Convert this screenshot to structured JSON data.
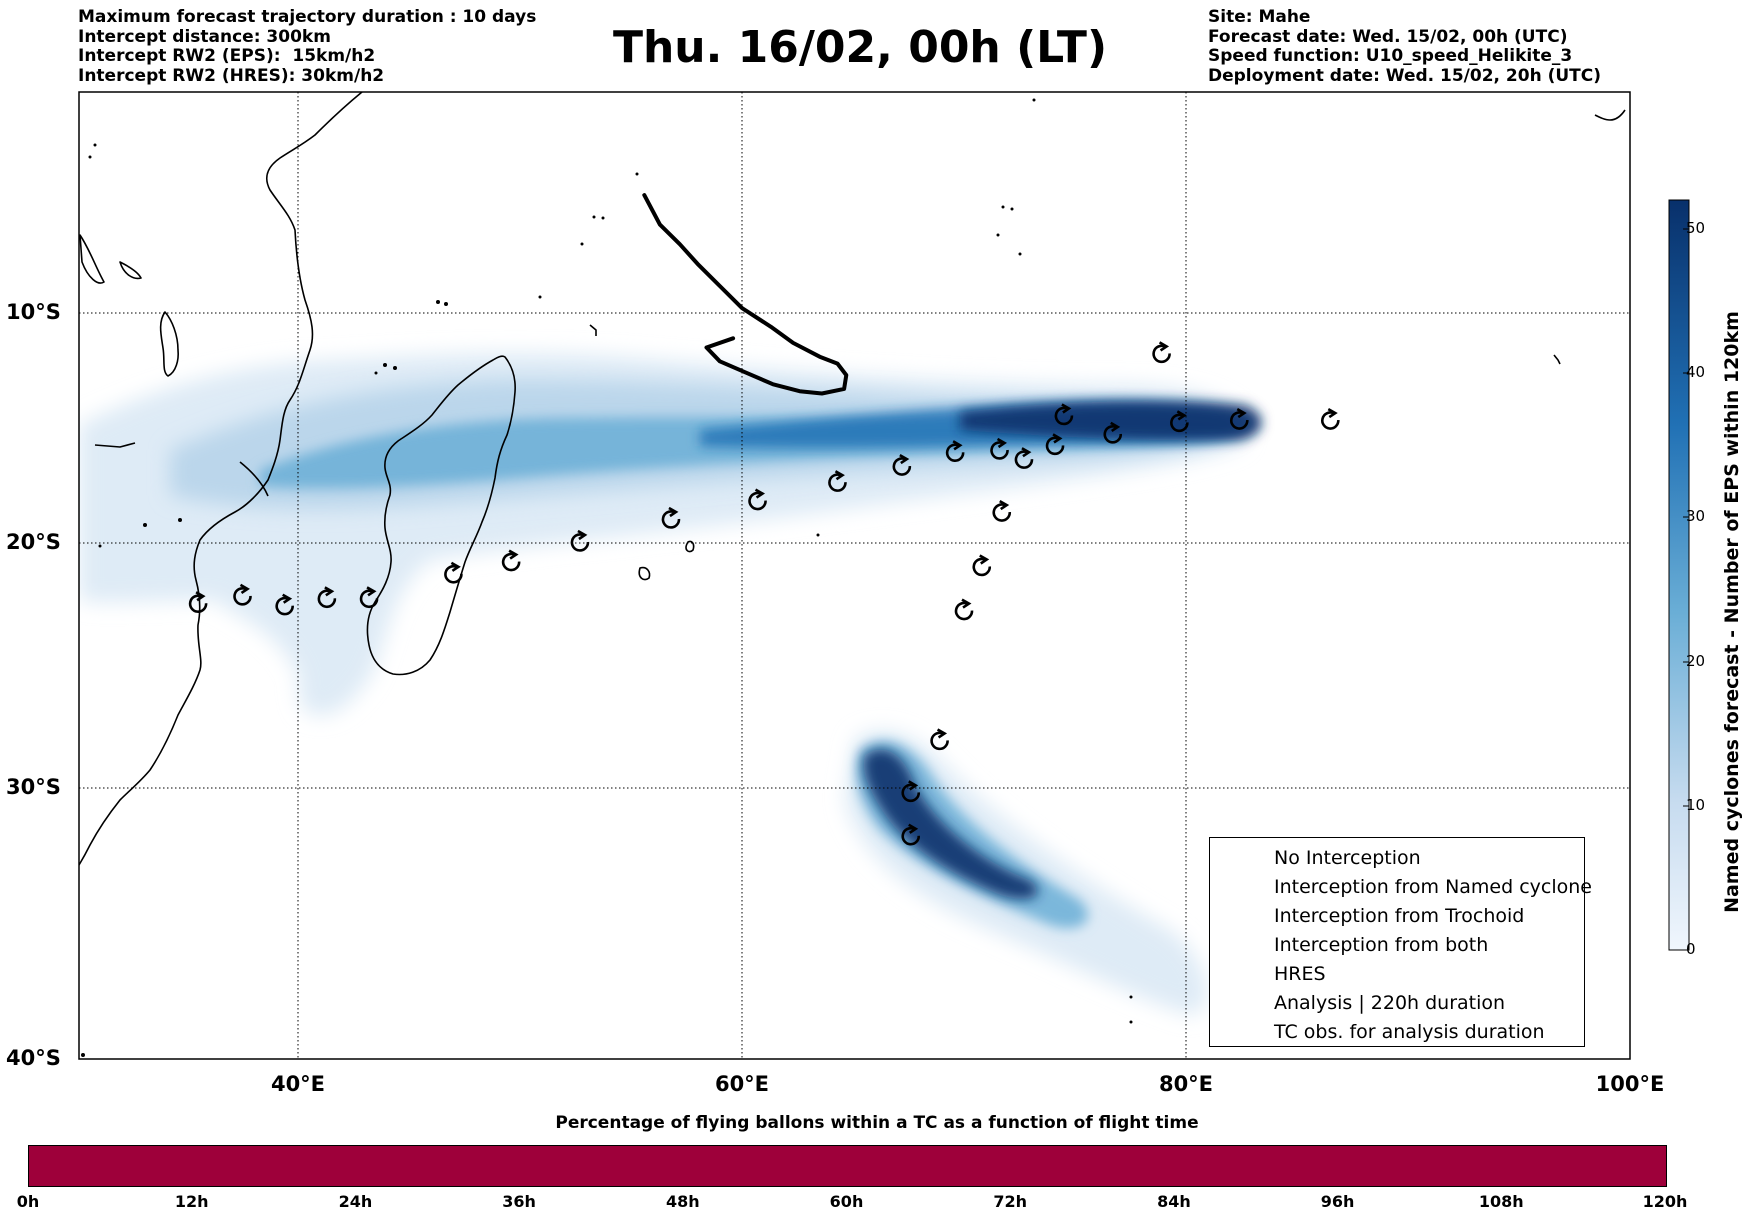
{
  "header_left": [
    "Maximum forecast trajectory duration : 10 days",
    "Intercept distance: 300km",
    "Intercept RW2 (EPS):  15km/h2",
    "Intercept RW2 (HRES): 30km/h2"
  ],
  "header_right": [
    "Site: Mahe",
    "Forecast date: Wed. 15/02, 00h (UTC)",
    "Speed function: U10_speed_Helikite_3",
    "Deployment date: Wed. 15/02, 20h (UTC)"
  ],
  "title": "Thu. 16/02, 00h (LT)",
  "map": {
    "lon_range": [
      30,
      100
    ],
    "lat_range": [
      -40,
      -1
    ],
    "lat_labels": [
      "10°S",
      "20°S",
      "30°S",
      "40°S"
    ],
    "lon_labels": [
      "40°E",
      "60°E",
      "80°E",
      "100°E"
    ],
    "grid": true,
    "colors": {
      "land_outline": "#000000",
      "density_scale": "Blues"
    },
    "analysis_track": [
      [
        55.6,
        -5.2
      ],
      [
        56.3,
        -6.4
      ],
      [
        57.2,
        -7.2
      ],
      [
        58.0,
        -8.0
      ],
      [
        59.0,
        -8.9
      ],
      [
        60.0,
        -9.8
      ],
      [
        61.3,
        -10.6
      ],
      [
        62.3,
        -11.3
      ],
      [
        63.5,
        -11.9
      ],
      [
        64.3,
        -12.2
      ],
      [
        64.7,
        -12.7
      ],
      [
        64.6,
        -13.3
      ],
      [
        63.6,
        -13.5
      ],
      [
        62.6,
        -13.4
      ],
      [
        61.4,
        -13.1
      ],
      [
        60.2,
        -12.6
      ],
      [
        59.0,
        -12.1
      ],
      [
        58.4,
        -11.5
      ],
      [
        59.6,
        -11.1
      ]
    ],
    "tc_obs": [
      [
        35.5,
        -22.5
      ],
      [
        37.5,
        -22.2
      ],
      [
        39.4,
        -22.6
      ],
      [
        41.3,
        -22.3
      ],
      [
        43.2,
        -22.3
      ],
      [
        47.0,
        -21.3
      ],
      [
        49.6,
        -20.8
      ],
      [
        52.7,
        -20.0
      ],
      [
        56.8,
        -19.0
      ],
      [
        60.7,
        -18.2
      ],
      [
        64.3,
        -17.4
      ],
      [
        67.2,
        -16.7
      ],
      [
        69.6,
        -16.1
      ],
      [
        71.6,
        -16.0
      ],
      [
        72.7,
        -16.4
      ],
      [
        74.1,
        -15.8
      ],
      [
        76.7,
        -15.3
      ],
      [
        79.7,
        -14.8
      ],
      [
        82.4,
        -14.7
      ],
      [
        86.5,
        -14.7
      ],
      [
        74.5,
        -14.5
      ],
      [
        78.9,
        -11.8
      ],
      [
        71.7,
        -18.7
      ],
      [
        70.8,
        -21.0
      ],
      [
        70.0,
        -22.8
      ],
      [
        68.9,
        -28.1
      ],
      [
        67.6,
        -30.2
      ],
      [
        67.6,
        -31.8
      ]
    ]
  },
  "colorbar": {
    "label": "Named cyclones forecast - Number of EPS within 120km",
    "min": 0,
    "max": 52,
    "ticks": [
      "0",
      "10",
      "20",
      "30",
      "40",
      "50"
    ],
    "colors": {
      "low": "#dce9f6",
      "mid": "#6aaed6",
      "high": "#08306b"
    }
  },
  "legend": [
    {
      "label": "No Interception",
      "color": "#808080",
      "width": 1
    },
    {
      "label": "Interception from Named cyclone",
      "color": "#ff5a00",
      "width": 1
    },
    {
      "label": "Interception from Trochoid",
      "color": "#808000",
      "width": 1
    },
    {
      "label": "Interception from both",
      "color": "#008000",
      "width": 1
    },
    {
      "label": "HRES",
      "color": "#800080",
      "width": 4
    },
    {
      "label": "Analysis | 220h duration",
      "color": "#000000",
      "width": 4
    },
    {
      "label": "TC obs. for analysis duration",
      "color": "#000000",
      "width": 0
    }
  ],
  "time_bar": {
    "title": "Percentage of flying ballons within a TC as a function of flight time",
    "color": "#9e003a",
    "ticks": [
      "0h",
      "12h",
      "24h",
      "36h",
      "48h",
      "60h",
      "72h",
      "84h",
      "96h",
      "108h",
      "120h"
    ]
  }
}
